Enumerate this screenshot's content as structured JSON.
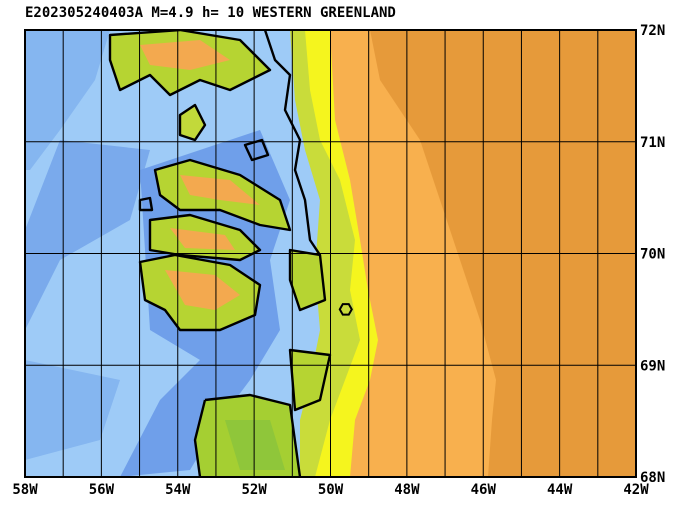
{
  "map": {
    "title": "E202305240403A M=4.9 h= 10 WESTERN GREENLAND",
    "xlim": [
      -58,
      -42
    ],
    "ylim": [
      68,
      72
    ],
    "xticks": [
      {
        "value": -58,
        "label": "58W"
      },
      {
        "value": -57,
        "label": null
      },
      {
        "value": -56,
        "label": "56W"
      },
      {
        "value": -55,
        "label": null
      },
      {
        "value": -54,
        "label": "54W"
      },
      {
        "value": -53,
        "label": null
      },
      {
        "value": -52,
        "label": "52W"
      },
      {
        "value": -51,
        "label": null
      },
      {
        "value": -50,
        "label": "50W"
      },
      {
        "value": -49,
        "label": null
      },
      {
        "value": -48,
        "label": "48W"
      },
      {
        "value": -47,
        "label": null
      },
      {
        "value": -46,
        "label": "46W"
      },
      {
        "value": -45,
        "label": null
      },
      {
        "value": -44,
        "label": "44W"
      },
      {
        "value": -43,
        "label": null
      },
      {
        "value": -42,
        "label": "42W"
      }
    ],
    "yticks": [
      {
        "value": 72,
        "label": "72N"
      },
      {
        "value": 71,
        "label": "71N"
      },
      {
        "value": 70,
        "label": "70N"
      },
      {
        "value": 69,
        "label": "69N"
      },
      {
        "value": 68,
        "label": "68N"
      }
    ],
    "epicenter": {
      "lon": -49.6,
      "lat": 69.5
    }
  }
}
